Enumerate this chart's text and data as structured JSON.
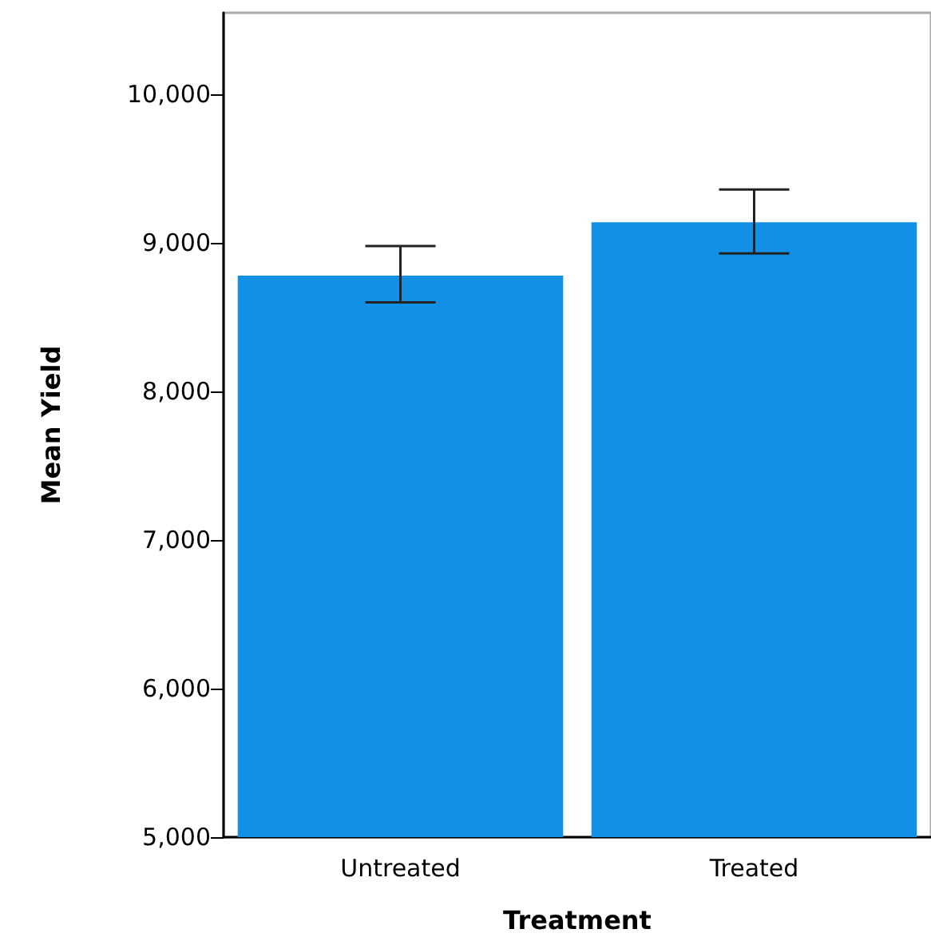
{
  "chart_data": {
    "type": "bar",
    "xlabel": "Treatment",
    "ylabel": "Mean Yield",
    "categories": [
      "Untreated",
      "Treated"
    ],
    "values": [
      8780,
      9140
    ],
    "color": "#1290e6",
    "errors": [
      [
        8600,
        8980
      ],
      [
        8930,
        9360
      ]
    ],
    "ylim": [
      5000,
      10550
    ],
    "yticks": [
      {
        "value": 5000,
        "label": "5,000"
      },
      {
        "value": 6000,
        "label": "6,000"
      },
      {
        "value": 7000,
        "label": "7,000"
      },
      {
        "value": 8000,
        "label": "8,000"
      },
      {
        "value": 9000,
        "label": "9,000"
      },
      {
        "value": 10000,
        "label": "10,000"
      }
    ],
    "grid": false
  }
}
